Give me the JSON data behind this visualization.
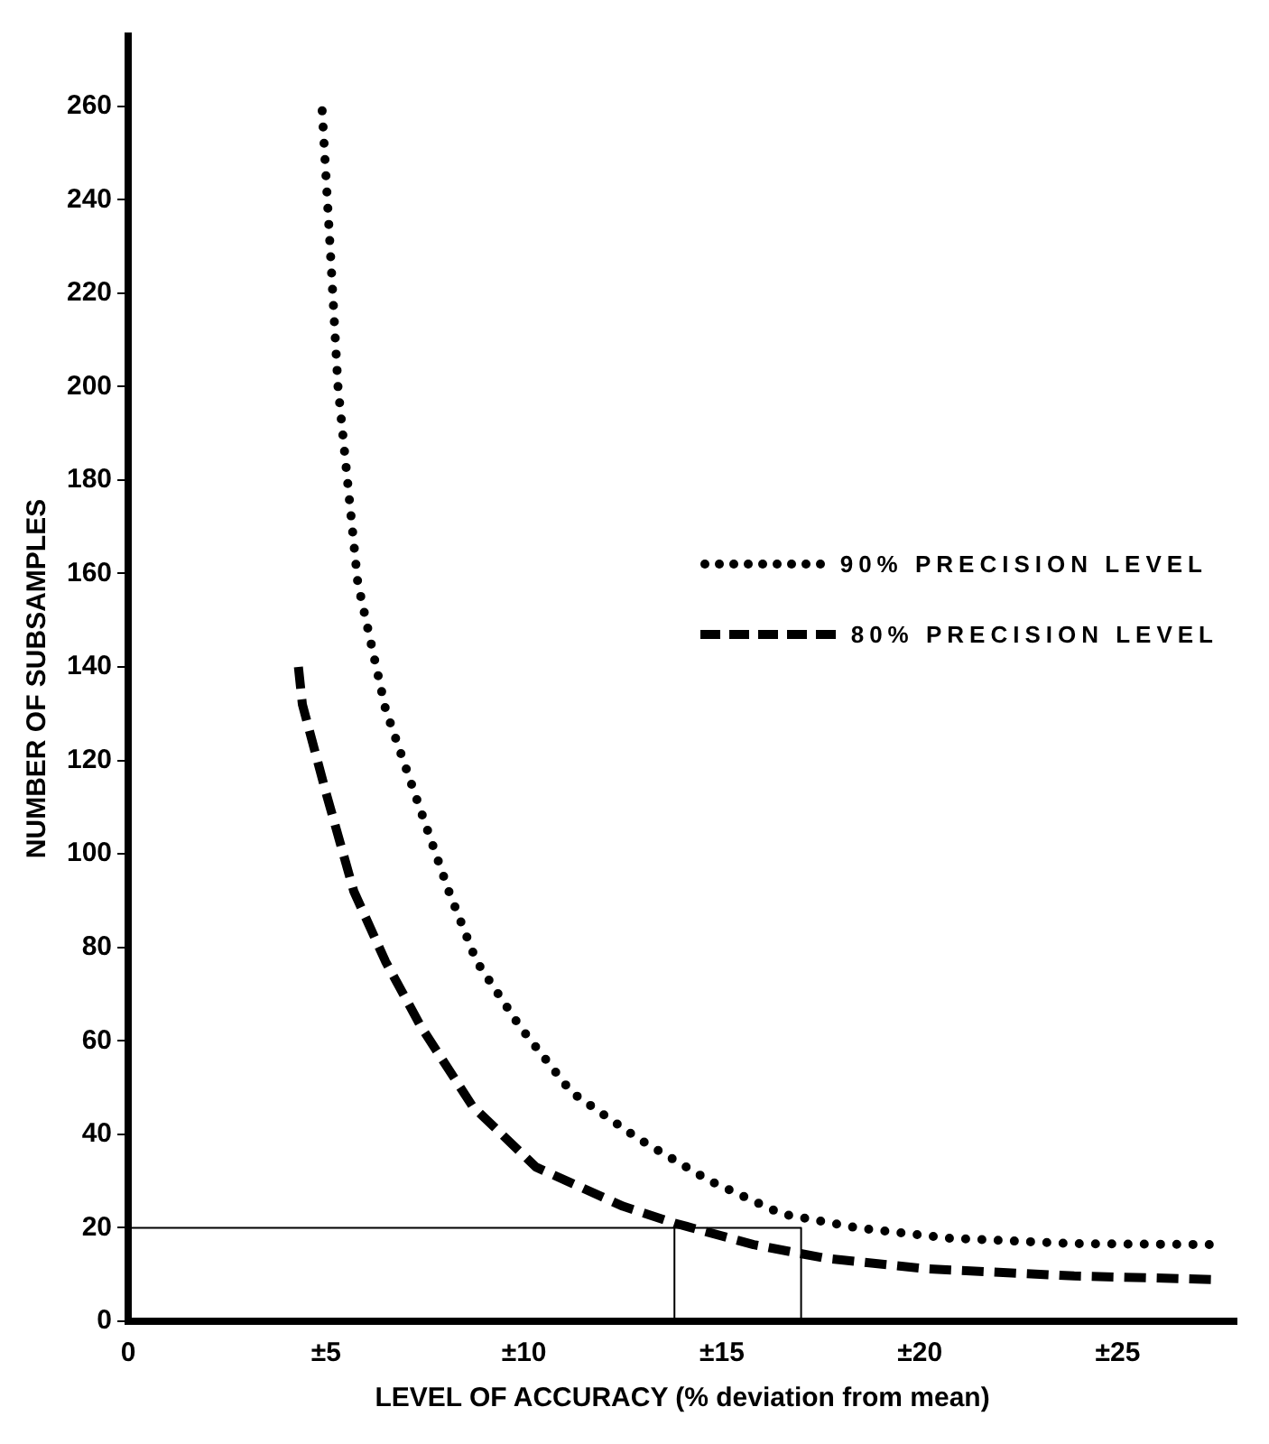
{
  "chart_data": {
    "type": "line",
    "xlabel": "LEVEL OF ACCURACY (% deviation from mean)",
    "ylabel": "NUMBER OF SUBSAMPLES",
    "xlim": [
      0,
      28
    ],
    "ylim": [
      0,
      275
    ],
    "xticks": [
      0,
      {
        "value": 5,
        "label": "±5"
      },
      {
        "value": 10,
        "label": "±10"
      },
      {
        "value": 15,
        "label": "±15"
      },
      {
        "value": 20,
        "label": "±20"
      },
      {
        "value": 25,
        "label": "±25"
      }
    ],
    "yticks": [
      0,
      20,
      40,
      60,
      80,
      100,
      120,
      140,
      160,
      180,
      200,
      220,
      240,
      260
    ],
    "grid": false,
    "legend": "right",
    "marker": "none",
    "series": [
      {
        "name": "90% PRECISION LEVEL",
        "color": "#000000",
        "line_style": "dotted",
        "x": [
          4.9,
          5.1,
          5.3,
          5.8,
          6.5,
          7.4,
          8.1,
          8.8,
          9.9,
          11.2,
          12.9,
          14.7,
          16.5,
          18.4,
          20.7,
          23.9,
          27.6
        ],
        "values": [
          259,
          230,
          200,
          158,
          131,
          109,
          92,
          77,
          63,
          49,
          39,
          30,
          23,
          20,
          17.8,
          16.6,
          16.4
        ]
      },
      {
        "name": "80% PRECISION LEVEL",
        "color": "#000000",
        "line_style": "dashed",
        "x": [
          4.3,
          4.4,
          5,
          5.7,
          6.5,
          7.4,
          8.7,
          10.3,
          12.5,
          13.8,
          15.8,
          17.6,
          20.2,
          23.9,
          27.6
        ],
        "values": [
          140,
          132,
          113,
          92,
          77,
          63,
          46,
          33,
          24.6,
          21,
          16.4,
          13.5,
          11.2,
          9.7,
          8.9
        ]
      },
      {
        "color": "#000000",
        "line_style": "solid",
        "x": [
          0,
          17,
          17
        ],
        "values": [
          20,
          20,
          0
        ]
      },
      {
        "color": "#000000",
        "line_style": "solid",
        "x": [
          13.8,
          13.8
        ],
        "values": [
          20,
          0
        ]
      }
    ]
  }
}
